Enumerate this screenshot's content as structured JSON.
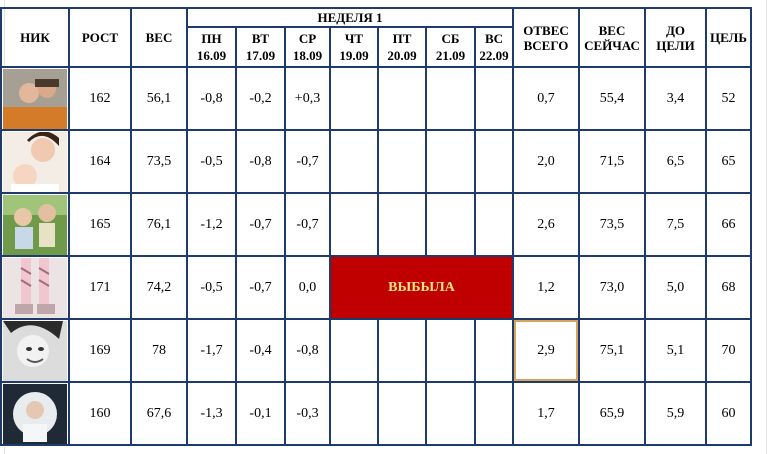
{
  "header": {
    "nick": "НИК",
    "height": "РОСТ",
    "weight": "ВЕС",
    "week": "НЕДЕЛЯ 1",
    "days": [
      {
        "dow": "ПН",
        "date": "16.09"
      },
      {
        "dow": "ВТ",
        "date": "17.09"
      },
      {
        "dow": "СР",
        "date": "18.09"
      },
      {
        "dow": "ЧТ",
        "date": "19.09"
      },
      {
        "dow": "ПТ",
        "date": "20.09"
      },
      {
        "dow": "СБ",
        "date": "21.09"
      },
      {
        "dow": "ВС",
        "date": "22.09"
      }
    ],
    "lost_total": [
      "ОТВЕС",
      "ВСЕГО"
    ],
    "weight_now": [
      "ВЕС",
      "СЕЙЧАС"
    ],
    "to_goal": [
      "ДО",
      "ЦЕЛИ"
    ],
    "goal": "ЦЕЛЬ"
  },
  "dropped_label": "ВЫБЫЛА",
  "rows": [
    {
      "avatar": "couple-photo",
      "height": "162",
      "weight": "56,1",
      "d1": "-0,8",
      "d2": "-0,2",
      "d3": "+0,3",
      "lost": "0,7",
      "now": "55,4",
      "to_goal": "3,4",
      "goal": "52"
    },
    {
      "avatar": "mother-baby-photo",
      "height": "164",
      "weight": "73,5",
      "d1": "-0,5",
      "d2": "-0,8",
      "d3": "-0,7",
      "lost": "2,0",
      "now": "71,5",
      "to_goal": "6,5",
      "goal": "65"
    },
    {
      "avatar": "child-outdoors-photo",
      "height": "165",
      "weight": "76,1",
      "d1": "-1,2",
      "d2": "-0,7",
      "d3": "-0,7",
      "lost": "2,6",
      "now": "73,5",
      "to_goal": "7,5",
      "goal": "66"
    },
    {
      "avatar": "legs-socks-photo",
      "height": "171",
      "weight": "74,2",
      "d1": "-0,5",
      "d2": "-0,7",
      "d3": "0,0",
      "lost": "1,2",
      "now": "73,0",
      "to_goal": "5,0",
      "goal": "68",
      "dropped": true
    },
    {
      "avatar": "woman-bw-photo",
      "height": "169",
      "weight": "78",
      "d1": "-1,7",
      "d2": "-0,4",
      "d3": "-0,8",
      "lost": "2,9",
      "now": "75,1",
      "to_goal": "5,1",
      "goal": "70",
      "selected": "lost"
    },
    {
      "avatar": "baby-fur-photo",
      "height": "160",
      "weight": "67,6",
      "d1": "-1,3",
      "d2": "-0,1",
      "d3": "-0,3",
      "lost": "1,7",
      "now": "65,9",
      "to_goal": "5,9",
      "goal": "60"
    }
  ],
  "colors": {
    "border": "#1f3b6b",
    "dropped_bg": "#c00000",
    "dropped_text": "#ffe57a",
    "selection": "#d8a35a"
  }
}
